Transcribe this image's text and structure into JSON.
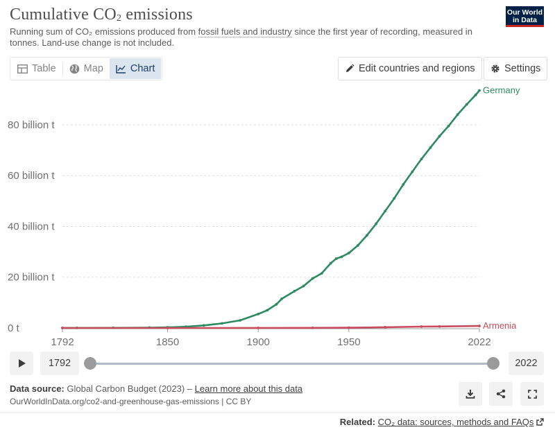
{
  "header": {
    "title": "Cumulative CO",
    "title_sub": "2",
    "title_suffix": " emissions",
    "subtitle_pre": "Running sum of CO₂ emissions produced from ",
    "subtitle_link": "fossil fuels and industry",
    "subtitle_post": " since the first year of recording, measured in tonnes. Land-use change is not included.",
    "logo_line1": "Our World",
    "logo_line2": "in Data"
  },
  "tabs": [
    {
      "label": "Table",
      "icon": "table-icon"
    },
    {
      "label": "Map",
      "icon": "globe-icon"
    },
    {
      "label": "Chart",
      "icon": "line-chart-icon"
    }
  ],
  "actions": {
    "edit_label": "Edit countries and regions",
    "settings_label": "Settings"
  },
  "chart_data": {
    "type": "line",
    "ylim": [
      0,
      95
    ],
    "xlim": [
      1792,
      2022
    ],
    "y_unit": "billion t",
    "y_ticks": [
      {
        "value": 0,
        "label": "0 t"
      },
      {
        "value": 20,
        "label": "20 billion t"
      },
      {
        "value": 40,
        "label": "40 billion t"
      },
      {
        "value": 60,
        "label": "60 billion t"
      },
      {
        "value": 80,
        "label": "80 billion t"
      }
    ],
    "x_ticks": [
      1792,
      1850,
      1900,
      1950,
      2022
    ],
    "grid": "horizontal dashed",
    "series": [
      {
        "name": "Germany",
        "color": "#2e8a61",
        "points": [
          [
            1792,
            0.02
          ],
          [
            1800,
            0.03
          ],
          [
            1820,
            0.06
          ],
          [
            1840,
            0.15
          ],
          [
            1850,
            0.25
          ],
          [
            1860,
            0.5
          ],
          [
            1870,
            1.0
          ],
          [
            1880,
            1.8
          ],
          [
            1890,
            3.0
          ],
          [
            1900,
            5.5
          ],
          [
            1905,
            7.0
          ],
          [
            1910,
            9.3
          ],
          [
            1913,
            11.5
          ],
          [
            1920,
            14.5
          ],
          [
            1925,
            16.5
          ],
          [
            1930,
            19.5
          ],
          [
            1935,
            21.5
          ],
          [
            1940,
            25.5
          ],
          [
            1943,
            27.3
          ],
          [
            1946,
            28.0
          ],
          [
            1950,
            29.5
          ],
          [
            1955,
            32.5
          ],
          [
            1960,
            36.5
          ],
          [
            1965,
            41.0
          ],
          [
            1970,
            46.0
          ],
          [
            1975,
            51.0
          ],
          [
            1980,
            56.5
          ],
          [
            1985,
            61.5
          ],
          [
            1990,
            66.5
          ],
          [
            1995,
            71.0
          ],
          [
            2000,
            75.5
          ],
          [
            2005,
            79.5
          ],
          [
            2010,
            84.0
          ],
          [
            2015,
            88.0
          ],
          [
            2020,
            91.8
          ],
          [
            2022,
            93.5
          ]
        ]
      },
      {
        "name": "Armenia",
        "color": "#c84c5e",
        "points": [
          [
            1792,
            0
          ],
          [
            1850,
            0
          ],
          [
            1900,
            0.02
          ],
          [
            1930,
            0.05
          ],
          [
            1950,
            0.12
          ],
          [
            1970,
            0.3
          ],
          [
            1990,
            0.55
          ],
          [
            2000,
            0.6
          ],
          [
            2022,
            0.8
          ]
        ]
      }
    ]
  },
  "timeline": {
    "start_year": "1792",
    "end_year": "2022",
    "start_fraction": 0,
    "end_fraction": 1
  },
  "footer": {
    "source_label": "Data source:",
    "source_value": " Global Carbon Budget (2023) – ",
    "learn_more": "Learn more about this data",
    "url": "OurWorldInData.org/co2-and-greenhouse-gas-emissions | CC BY",
    "related_label": "Related: ",
    "related_link": "CO₂ data: sources, methods and FAQs"
  }
}
